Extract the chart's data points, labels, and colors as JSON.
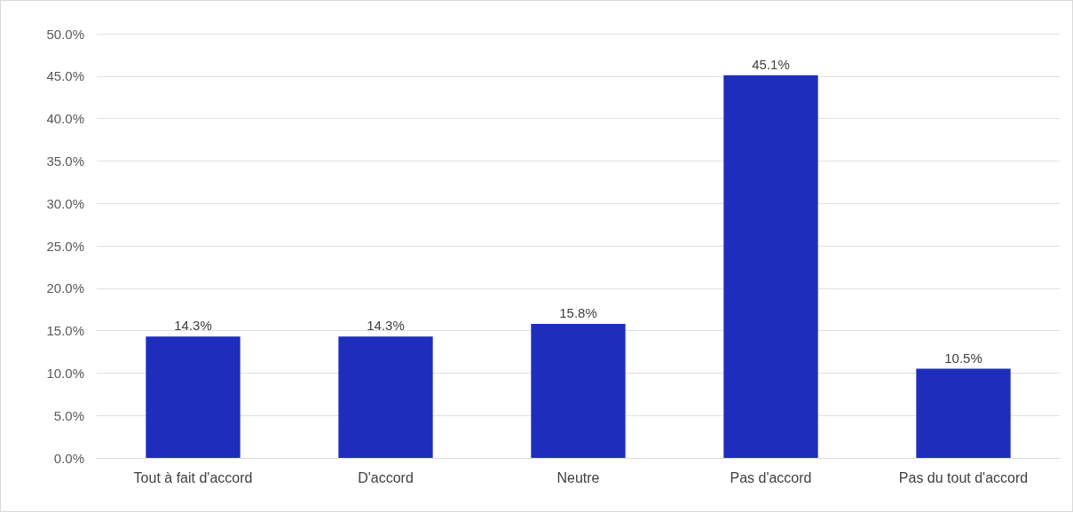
{
  "chart_data": {
    "type": "bar",
    "categories": [
      "Tout à fait d'accord",
      "D'accord",
      "Neutre",
      "Pas d'accord",
      "Pas du tout d'accord"
    ],
    "series": [
      {
        "color": "#1f2dbd",
        "values": [
          14.3,
          14.3,
          15.8,
          45.1,
          10.5
        ],
        "value_labels": [
          "14.3%",
          "14.3%",
          "15.8%",
          "45.1%",
          "10.5%"
        ]
      }
    ],
    "ylim": [
      0,
      50
    ],
    "yticks": [
      {
        "value": 0,
        "label": "0.0%"
      },
      {
        "value": 5,
        "label": "5.0%"
      },
      {
        "value": 10,
        "label": "10.0%"
      },
      {
        "value": 15,
        "label": "15.0%"
      },
      {
        "value": 20,
        "label": "20.0%"
      },
      {
        "value": 25,
        "label": "25.0%"
      },
      {
        "value": 30,
        "label": "30.0%"
      },
      {
        "value": 35,
        "label": "35.0%"
      },
      {
        "value": 40,
        "label": "40.0%"
      },
      {
        "value": 45,
        "label": "45.0%"
      },
      {
        "value": 50,
        "label": "50.0%"
      }
    ],
    "grid": "y"
  }
}
